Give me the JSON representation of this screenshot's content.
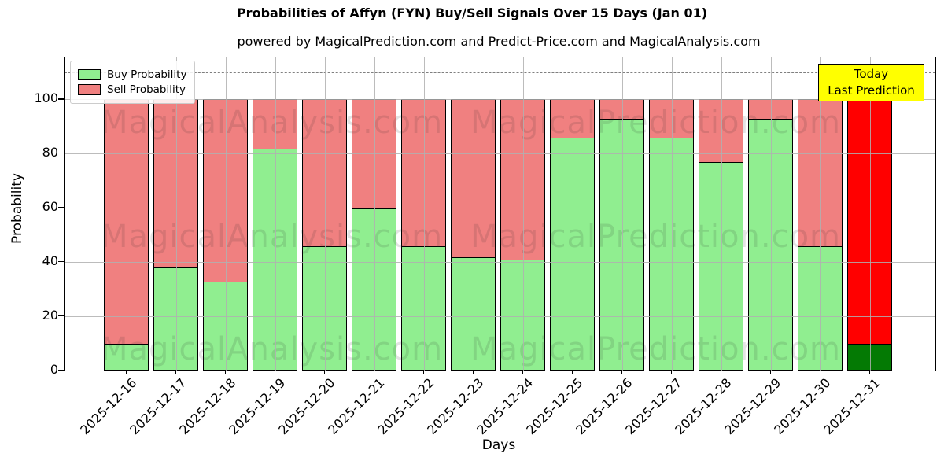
{
  "title": "Probabilities of Affyn (FYN) Buy/Sell Signals Over 15 Days (Jan 01)",
  "subtitle": "powered by MagicalPrediction.com and Predict-Price.com and MagicalAnalysis.com",
  "watermarks": {
    "left": "MagicalAnalysis.com",
    "right": "MagicalPrediction.com"
  },
  "legend": {
    "items": [
      {
        "label": "Buy Probability",
        "color": "#90ee90"
      },
      {
        "label": "Sell Probability",
        "color": "#f08080"
      }
    ]
  },
  "annotation": {
    "line1": "Today",
    "line2": "Last Prediction",
    "bg": "#ffff00"
  },
  "axes": {
    "ylabel": "Probability",
    "xlabel": "Days",
    "yticks": [
      0,
      20,
      40,
      60,
      80,
      100
    ],
    "ymax_visible": 115.4,
    "dashed_line_y": 110,
    "grid_color": "#b0b0b0"
  },
  "chart_data": {
    "type": "bar",
    "stacked": true,
    "title": "Probabilities of Affyn (FYN) Buy/Sell Signals Over 15 Days (Jan 01)",
    "xlabel": "Days",
    "ylabel": "Probability",
    "ylim": [
      0,
      115
    ],
    "grid": true,
    "legend_position": "upper left",
    "categories": [
      "2025-12-16",
      "2025-12-17",
      "2025-12-18",
      "2025-12-19",
      "2025-12-20",
      "2025-12-21",
      "2025-12-22",
      "2025-12-23",
      "2025-12-24",
      "2025-12-25",
      "2025-12-26",
      "2025-12-27",
      "2025-12-28",
      "2025-12-29",
      "2025-12-30",
      "2025-12-31"
    ],
    "series": [
      {
        "name": "Buy Probability",
        "color": "#90ee90",
        "today_color": "#047a04",
        "values": [
          10,
          38,
          33,
          82,
          46,
          60,
          46,
          42,
          41,
          86,
          93,
          86,
          77,
          93,
          46,
          10
        ]
      },
      {
        "name": "Sell Probability",
        "color": "#f08080",
        "today_color": "#ff0000",
        "values": [
          90,
          62,
          67,
          18,
          54,
          40,
          54,
          58,
          59,
          14,
          7,
          14,
          23,
          7,
          54,
          90
        ]
      }
    ],
    "today_index": 15,
    "bar_edge_color": "#000000",
    "dashed_line_y": 110
  }
}
